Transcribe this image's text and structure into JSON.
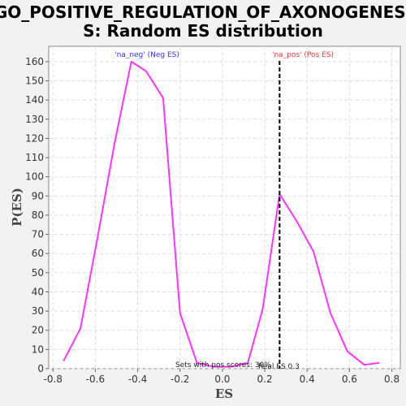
{
  "chart_data": {
    "type": "line",
    "title_line1": "GO_POSITIVE_REGULATION_OF_AXONOGENESI",
    "title_line2": "S: Random ES distribution",
    "xlabel": "ES",
    "ylabel": "P(ES)",
    "xlim": [
      -0.82,
      0.84
    ],
    "ylim": [
      0,
      168
    ],
    "x_ticks": [
      -0.8,
      -0.6,
      -0.4,
      -0.2,
      0.0,
      0.2,
      0.4,
      0.6,
      0.8
    ],
    "x_tick_labels": [
      "-0.8",
      "-0.6",
      "-0.4",
      "-0.2",
      "0.0",
      "0.2",
      "0.4",
      "0.6",
      "0.8"
    ],
    "y_ticks": [
      0,
      10,
      20,
      30,
      40,
      50,
      60,
      70,
      80,
      90,
      100,
      110,
      120,
      130,
      140,
      150,
      160
    ],
    "y_tick_labels": [
      "0",
      "10",
      "20",
      "30",
      "40",
      "50",
      "60",
      "70",
      "80",
      "90",
      "100",
      "110",
      "120",
      "130",
      "140",
      "150",
      "160"
    ],
    "grid": true,
    "series": [
      {
        "color": "#ff33ff",
        "x": [
          -0.75,
          -0.67,
          -0.59,
          -0.51,
          -0.43,
          -0.36,
          -0.28,
          -0.2,
          -0.12,
          -0.04,
          0.04,
          0.12,
          0.19,
          0.27,
          0.35,
          0.43,
          0.51,
          0.59,
          0.67,
          0.74
        ],
        "y": [
          4,
          21,
          68,
          117,
          160,
          155,
          141,
          29,
          3,
          1,
          1,
          3,
          31,
          91,
          77,
          61,
          29,
          9,
          2,
          3
        ]
      }
    ],
    "marker_line": {
      "x": 0.27,
      "color": "#000000"
    },
    "annotations": {
      "neg_label": "'na_neg' (Neg ES)",
      "neg_color": "#3333ff",
      "pos_label": "'na_pos' (Pos ES)",
      "pos_color": "#ff3333",
      "sets_text": "Sets with pos scores: 30%",
      "real_es_text": "Real ES 0.3"
    }
  }
}
